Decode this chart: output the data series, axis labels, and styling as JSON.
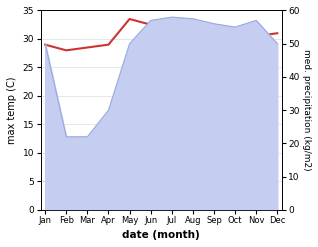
{
  "months": [
    "Jan",
    "Feb",
    "Mar",
    "Apr",
    "May",
    "Jun",
    "Jul",
    "Aug",
    "Sep",
    "Oct",
    "Nov",
    "Dec"
  ],
  "month_indices": [
    0,
    1,
    2,
    3,
    4,
    5,
    6,
    7,
    8,
    9,
    10,
    11
  ],
  "temperature": [
    29.0,
    28.0,
    28.5,
    29.0,
    33.5,
    32.5,
    32.5,
    33.0,
    32.0,
    31.5,
    30.5,
    31.0
  ],
  "precipitation": [
    50.0,
    22.0,
    22.0,
    30.0,
    50.0,
    57.0,
    58.0,
    57.5,
    56.0,
    55.0,
    57.0,
    50.0
  ],
  "temp_color": "#cc3333",
  "precip_fill_color": "#c5cdf0",
  "precip_line_color": "#99aade",
  "temp_ylim": [
    0,
    35
  ],
  "precip_ylim": [
    0,
    60
  ],
  "temp_yticks": [
    0,
    5,
    10,
    15,
    20,
    25,
    30,
    35
  ],
  "precip_yticks": [
    0,
    10,
    20,
    30,
    40,
    50,
    60
  ],
  "xlabel": "date (month)",
  "ylabel_left": "max temp (C)",
  "ylabel_right": "med. precipitation (kg/m2)",
  "bg_color": "#ffffff",
  "figsize": [
    3.18,
    2.47
  ],
  "dpi": 100
}
